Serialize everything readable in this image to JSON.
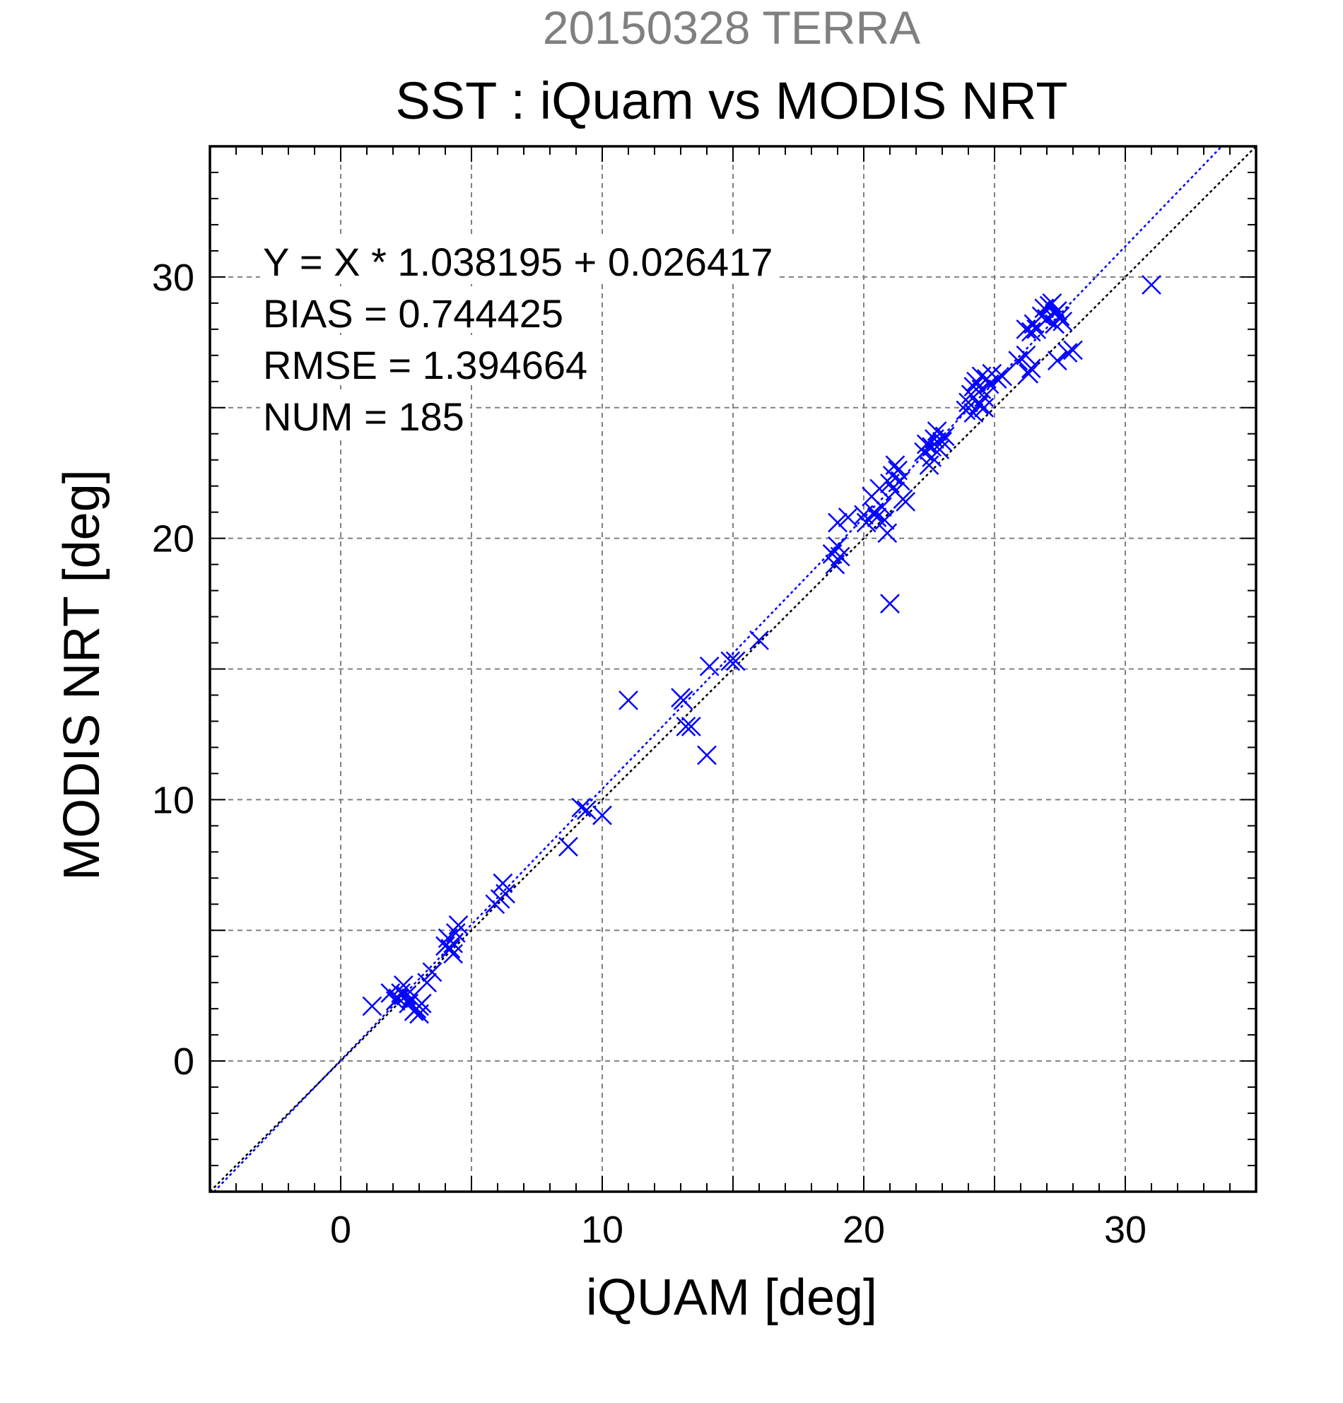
{
  "chart_data": {
    "type": "scatter",
    "suptitle": "20150328 TERRA",
    "title": "SST : iQuam vs MODIS NRT",
    "xlabel": "iQUAM [deg]",
    "ylabel": "MODIS NRT [deg]",
    "xlim": [
      -5,
      35
    ],
    "ylim": [
      -5,
      35
    ],
    "xticks": [
      0,
      10,
      20,
      30
    ],
    "yticks": [
      0,
      10,
      20,
      30
    ],
    "xtick_labels": [
      "0",
      "10",
      "20",
      "30"
    ],
    "ytick_labels": [
      "0",
      "10",
      "20",
      "30"
    ],
    "grid": true,
    "grid_values": [
      -5,
      0,
      5,
      10,
      15,
      20,
      25,
      30,
      35
    ],
    "marker": "x",
    "colors": {
      "points": "#0000ff",
      "fit_line": "#0000ff",
      "identity_line": "#000000",
      "grid": "#808080",
      "suptitle": "#808080"
    },
    "annotations": [
      "Y = X * 1.038195 + 0.026417",
      "BIAS = 0.744425",
      "RMSE = 1.394664",
      "NUM = 185"
    ],
    "fit": {
      "slope": 1.038195,
      "intercept": 0.026417
    },
    "identity": {
      "slope": 1,
      "intercept": 0
    },
    "points": [
      [
        1.2,
        2.1
      ],
      [
        1.9,
        2.6
      ],
      [
        2.1,
        2.3
      ],
      [
        2.2,
        2.4
      ],
      [
        2.3,
        2.6
      ],
      [
        2.4,
        2.9
      ],
      [
        2.5,
        2.5
      ],
      [
        2.6,
        2.2
      ],
      [
        2.7,
        2.4
      ],
      [
        2.8,
        1.9
      ],
      [
        2.9,
        2.0
      ],
      [
        3.0,
        2.1
      ],
      [
        3.0,
        1.8
      ],
      [
        3.1,
        2.2
      ],
      [
        3.3,
        3.0
      ],
      [
        3.5,
        3.4
      ],
      [
        4.0,
        4.4
      ],
      [
        4.1,
        4.7
      ],
      [
        4.2,
        4.3
      ],
      [
        4.3,
        4.5
      ],
      [
        4.4,
        4.9
      ],
      [
        4.5,
        5.2
      ],
      [
        4.3,
        4.1
      ],
      [
        5.9,
        6.0
      ],
      [
        6.1,
        6.2
      ],
      [
        6.2,
        6.8
      ],
      [
        6.3,
        6.4
      ],
      [
        8.7,
        8.2
      ],
      [
        9.2,
        9.7
      ],
      [
        9.4,
        9.6
      ],
      [
        10.0,
        9.4
      ],
      [
        11.0,
        13.8
      ],
      [
        13.0,
        13.9
      ],
      [
        13.1,
        13.8
      ],
      [
        13.2,
        12.8
      ],
      [
        13.4,
        12.8
      ],
      [
        14.0,
        11.7
      ],
      [
        14.1,
        15.1
      ],
      [
        14.9,
        15.3
      ],
      [
        15.1,
        15.3
      ],
      [
        16.0,
        16.1
      ],
      [
        18.8,
        19.4
      ],
      [
        18.9,
        19.0
      ],
      [
        19.0,
        19.7
      ],
      [
        19.1,
        19.3
      ],
      [
        19.0,
        20.6
      ],
      [
        19.4,
        20.8
      ],
      [
        20.0,
        20.9
      ],
      [
        20.1,
        20.6
      ],
      [
        20.3,
        21.6
      ],
      [
        20.4,
        21.0
      ],
      [
        20.5,
        20.8
      ],
      [
        20.6,
        21.9
      ],
      [
        20.7,
        21.2
      ],
      [
        20.8,
        20.7
      ],
      [
        20.9,
        20.2
      ],
      [
        21.0,
        22.1
      ],
      [
        21.0,
        17.5
      ],
      [
        21.1,
        22.4
      ],
      [
        21.2,
        21.8
      ],
      [
        21.3,
        22.6
      ],
      [
        21.4,
        22.2
      ],
      [
        21.5,
        21.5
      ],
      [
        21.2,
        22.8
      ],
      [
        21.6,
        21.4
      ],
      [
        22.3,
        23.3
      ],
      [
        22.4,
        23.6
      ],
      [
        22.5,
        22.8
      ],
      [
        22.6,
        23.1
      ],
      [
        22.7,
        23.8
      ],
      [
        22.8,
        24.1
      ],
      [
        22.9,
        23.4
      ],
      [
        23.0,
        23.7
      ],
      [
        23.1,
        23.9
      ],
      [
        22.6,
        23.5
      ],
      [
        23.9,
        24.9
      ],
      [
        24.0,
        25.2
      ],
      [
        24.1,
        25.5
      ],
      [
        24.2,
        24.8
      ],
      [
        24.2,
        25.8
      ],
      [
        24.3,
        26.0
      ],
      [
        24.4,
        25.1
      ],
      [
        24.5,
        25.7
      ],
      [
        24.5,
        26.2
      ],
      [
        24.6,
        25.4
      ],
      [
        24.7,
        26.1
      ],
      [
        24.8,
        25.9
      ],
      [
        24.9,
        26.3
      ],
      [
        24.6,
        25.0
      ],
      [
        25.1,
        26.1
      ],
      [
        25.3,
        26.2
      ],
      [
        25.9,
        26.8
      ],
      [
        26.2,
        27.0
      ],
      [
        26.3,
        26.3
      ],
      [
        26.4,
        26.5
      ],
      [
        26.2,
        28.0
      ],
      [
        26.4,
        27.9
      ],
      [
        26.5,
        28.2
      ],
      [
        26.6,
        28.0
      ],
      [
        26.8,
        28.5
      ],
      [
        26.9,
        28.8
      ],
      [
        27.0,
        28.4
      ],
      [
        27.1,
        28.9
      ],
      [
        27.2,
        29.0
      ],
      [
        27.3,
        28.6
      ],
      [
        27.3,
        28.2
      ],
      [
        27.4,
        28.7
      ],
      [
        27.5,
        28.5
      ],
      [
        27.6,
        28.3
      ],
      [
        27.4,
        26.8
      ],
      [
        27.8,
        27.1
      ],
      [
        28.0,
        27.2
      ],
      [
        31.0,
        29.7
      ]
    ]
  }
}
